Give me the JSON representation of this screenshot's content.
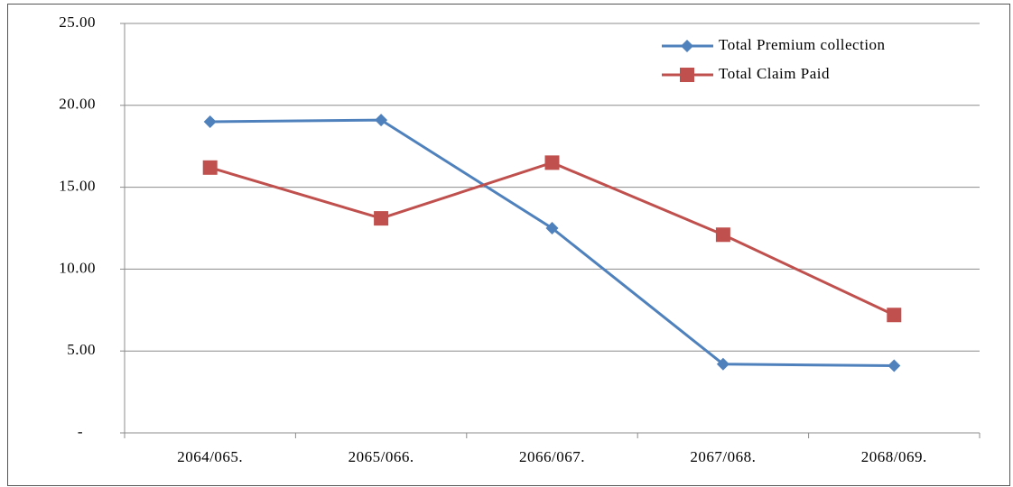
{
  "chart_data": {
    "type": "line",
    "categories": [
      "2064/065.",
      "2065/066.",
      "2066/067.",
      "2067/068.",
      "2068/069."
    ],
    "series": [
      {
        "name": "Total Premium collection",
        "color": "#4f81bd",
        "marker": "diamond",
        "values": [
          19.0,
          19.1,
          12.5,
          4.2,
          4.1
        ]
      },
      {
        "name": "Total Claim Paid",
        "color": "#c0504d",
        "marker": "square",
        "values": [
          16.2,
          13.1,
          16.5,
          12.1,
          7.2
        ]
      }
    ],
    "ylim": [
      0,
      25
    ],
    "yticks": [
      {
        "value": 0,
        "label": "-"
      },
      {
        "value": 5,
        "label": "5.00"
      },
      {
        "value": 10,
        "label": "10.00"
      },
      {
        "value": 15,
        "label": "15.00"
      },
      {
        "value": 20,
        "label": "20.00"
      },
      {
        "value": 25,
        "label": "25.00"
      }
    ],
    "grid": true,
    "legend": "top-right"
  }
}
